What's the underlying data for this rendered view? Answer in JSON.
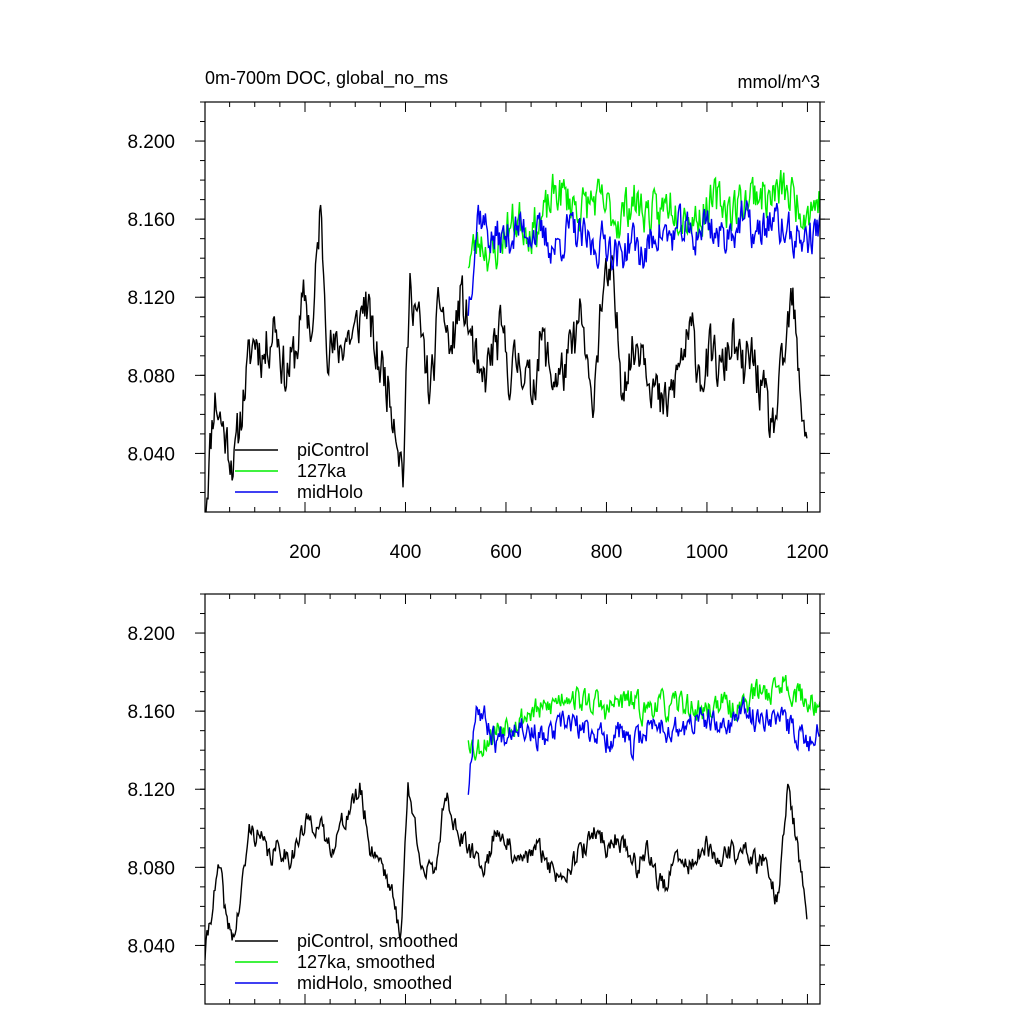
{
  "chart_data": [
    {
      "type": "line",
      "title": "0m-700m DOC, global_no_ms",
      "units": "mmol/m^3",
      "xlabel": "",
      "ylabel": "",
      "xlim": [
        1,
        1225
      ],
      "ylim": [
        8.01,
        8.22
      ],
      "xticks": [
        200,
        400,
        600,
        800,
        1000,
        1200
      ],
      "xtick_labels": [
        "200",
        "400",
        "600",
        "800",
        "1000",
        "1200"
      ],
      "yticks": [
        8.04,
        8.08,
        8.12,
        8.16,
        8.2
      ],
      "ytick_labels": [
        "8.040",
        "8.080",
        "8.120",
        "8.160",
        "8.200"
      ],
      "legend_position": "bottom-left",
      "series": [
        {
          "name": "piControl",
          "color": "#000000",
          "x_start": 1,
          "x_end": 1200,
          "anchors": [
            [
              1,
              8.012
            ],
            [
              20,
              8.07
            ],
            [
              40,
              8.05
            ],
            [
              60,
              8.035
            ],
            [
              80,
              8.075
            ],
            [
              100,
              8.1
            ],
            [
              120,
              8.09
            ],
            [
              140,
              8.11
            ],
            [
              160,
              8.08
            ],
            [
              180,
              8.09
            ],
            [
              200,
              8.12
            ],
            [
              215,
              8.1
            ],
            [
              230,
              8.165
            ],
            [
              245,
              8.1
            ],
            [
              260,
              8.09
            ],
            [
              280,
              8.1
            ],
            [
              300,
              8.1
            ],
            [
              320,
              8.12
            ],
            [
              340,
              8.09
            ],
            [
              360,
              8.08
            ],
            [
              380,
              8.06
            ],
            [
              395,
              8.03
            ],
            [
              410,
              8.13
            ],
            [
              430,
              8.1
            ],
            [
              450,
              8.07
            ],
            [
              470,
              8.12
            ],
            [
              490,
              8.09
            ],
            [
              510,
              8.12
            ],
            [
              530,
              8.1
            ],
            [
              550,
              8.07
            ],
            [
              570,
              8.09
            ],
            [
              590,
              8.1
            ],
            [
              610,
              8.08
            ],
            [
              630,
              8.09
            ],
            [
              650,
              8.07
            ],
            [
              670,
              8.1
            ],
            [
              690,
              8.08
            ],
            [
              710,
              8.08
            ],
            [
              730,
              8.09
            ],
            [
              750,
              8.11
            ],
            [
              770,
              8.06
            ],
            [
              790,
              8.12
            ],
            [
              810,
              8.13
            ],
            [
              830,
              8.08
            ],
            [
              850,
              8.09
            ],
            [
              870,
              8.1
            ],
            [
              890,
              8.08
            ],
            [
              910,
              8.06
            ],
            [
              930,
              8.07
            ],
            [
              950,
              8.09
            ],
            [
              970,
              8.1
            ],
            [
              990,
              8.08
            ],
            [
              1010,
              8.09
            ],
            [
              1030,
              8.08
            ],
            [
              1050,
              8.1
            ],
            [
              1070,
              8.08
            ],
            [
              1090,
              8.09
            ],
            [
              1110,
              8.07
            ],
            [
              1130,
              8.05
            ],
            [
              1150,
              8.08
            ],
            [
              1170,
              8.12
            ],
            [
              1185,
              8.07
            ],
            [
              1200,
              8.05
            ]
          ],
          "noise": 0.012,
          "seed": 11
        },
        {
          "name": "127ka",
          "color": "#00ee00",
          "x_start": 525,
          "x_end": 1225,
          "anchors": [
            [
              525,
              8.14
            ],
            [
              550,
              8.15
            ],
            [
              575,
              8.14
            ],
            [
              600,
              8.155
            ],
            [
              625,
              8.16
            ],
            [
              650,
              8.155
            ],
            [
              675,
              8.16
            ],
            [
              700,
              8.175
            ],
            [
              725,
              8.17
            ],
            [
              750,
              8.165
            ],
            [
              775,
              8.17
            ],
            [
              800,
              8.165
            ],
            [
              825,
              8.16
            ],
            [
              850,
              8.17
            ],
            [
              875,
              8.165
            ],
            [
              900,
              8.16
            ],
            [
              925,
              8.17
            ],
            [
              950,
              8.165
            ],
            [
              975,
              8.16
            ],
            [
              1000,
              8.165
            ],
            [
              1025,
              8.17
            ],
            [
              1050,
              8.165
            ],
            [
              1075,
              8.17
            ],
            [
              1100,
              8.175
            ],
            [
              1125,
              8.17
            ],
            [
              1150,
              8.175
            ],
            [
              1175,
              8.17
            ],
            [
              1200,
              8.165
            ],
            [
              1225,
              8.17
            ]
          ],
          "noise": 0.01,
          "seed": 23
        },
        {
          "name": "midHolo",
          "color": "#0000ee",
          "x_start": 525,
          "x_end": 1225,
          "anchors": [
            [
              525,
              8.115
            ],
            [
              545,
              8.165
            ],
            [
              570,
              8.15
            ],
            [
              600,
              8.15
            ],
            [
              625,
              8.155
            ],
            [
              650,
              8.155
            ],
            [
              675,
              8.15
            ],
            [
              700,
              8.145
            ],
            [
              725,
              8.155
            ],
            [
              750,
              8.15
            ],
            [
              775,
              8.145
            ],
            [
              800,
              8.15
            ],
            [
              825,
              8.14
            ],
            [
              850,
              8.15
            ],
            [
              875,
              8.14
            ],
            [
              900,
              8.155
            ],
            [
              925,
              8.15
            ],
            [
              950,
              8.155
            ],
            [
              975,
              8.15
            ],
            [
              1000,
              8.16
            ],
            [
              1025,
              8.15
            ],
            [
              1050,
              8.155
            ],
            [
              1075,
              8.16
            ],
            [
              1100,
              8.15
            ],
            [
              1125,
              8.16
            ],
            [
              1150,
              8.155
            ],
            [
              1175,
              8.15
            ],
            [
              1200,
              8.15
            ],
            [
              1225,
              8.155
            ]
          ],
          "noise": 0.009,
          "seed": 37
        }
      ]
    },
    {
      "type": "line",
      "title": "",
      "units": "",
      "xlabel": "",
      "ylabel": "",
      "xlim": [
        1,
        1225
      ],
      "ylim": [
        8.01,
        8.22
      ],
      "xticks": [
        200,
        400,
        600,
        800,
        1000,
        1200
      ],
      "xtick_labels": [],
      "yticks": [
        8.04,
        8.08,
        8.12,
        8.16,
        8.2
      ],
      "ytick_labels": [
        "8.040",
        "8.080",
        "8.120",
        "8.160",
        "8.200"
      ],
      "legend_position": "bottom-left",
      "series": [
        {
          "name": "piControl, smoothed",
          "color": "#000000",
          "x_start": 1,
          "x_end": 1200,
          "anchors": [
            [
              1,
              8.035
            ],
            [
              15,
              8.06
            ],
            [
              30,
              8.08
            ],
            [
              45,
              8.05
            ],
            [
              60,
              8.045
            ],
            [
              75,
              8.07
            ],
            [
              90,
              8.1
            ],
            [
              110,
              8.095
            ],
            [
              130,
              8.085
            ],
            [
              150,
              8.09
            ],
            [
              170,
              8.085
            ],
            [
              190,
              8.095
            ],
            [
              210,
              8.105
            ],
            [
              230,
              8.1
            ],
            [
              250,
              8.09
            ],
            [
              270,
              8.1
            ],
            [
              290,
              8.11
            ],
            [
              310,
              8.12
            ],
            [
              330,
              8.09
            ],
            [
              350,
              8.085
            ],
            [
              370,
              8.07
            ],
            [
              390,
              8.045
            ],
            [
              405,
              8.12
            ],
            [
              420,
              8.1
            ],
            [
              440,
              8.075
            ],
            [
              460,
              8.08
            ],
            [
              480,
              8.12
            ],
            [
              500,
              8.1
            ],
            [
              520,
              8.09
            ],
            [
              540,
              8.085
            ],
            [
              560,
              8.08
            ],
            [
              580,
              8.1
            ],
            [
              600,
              8.095
            ],
            [
              620,
              8.08
            ],
            [
              640,
              8.085
            ],
            [
              660,
              8.09
            ],
            [
              680,
              8.085
            ],
            [
              700,
              8.075
            ],
            [
              720,
              8.08
            ],
            [
              740,
              8.085
            ],
            [
              760,
              8.09
            ],
            [
              780,
              8.1
            ],
            [
              800,
              8.09
            ],
            [
              820,
              8.095
            ],
            [
              840,
              8.09
            ],
            [
              860,
              8.08
            ],
            [
              880,
              8.09
            ],
            [
              900,
              8.075
            ],
            [
              920,
              8.07
            ],
            [
              940,
              8.085
            ],
            [
              960,
              8.08
            ],
            [
              980,
              8.085
            ],
            [
              1000,
              8.09
            ],
            [
              1020,
              8.08
            ],
            [
              1040,
              8.09
            ],
            [
              1060,
              8.085
            ],
            [
              1080,
              8.09
            ],
            [
              1100,
              8.08
            ],
            [
              1120,
              8.085
            ],
            [
              1140,
              8.06
            ],
            [
              1160,
              8.12
            ],
            [
              1175,
              8.1
            ],
            [
              1190,
              8.07
            ],
            [
              1200,
              8.055
            ]
          ],
          "noise": 0.005,
          "seed": 41
        },
        {
          "name": "127ka, smoothed",
          "color": "#00ee00",
          "x_start": 525,
          "x_end": 1225,
          "anchors": [
            [
              525,
              8.148
            ],
            [
              540,
              8.14
            ],
            [
              560,
              8.145
            ],
            [
              580,
              8.15
            ],
            [
              600,
              8.155
            ],
            [
              625,
              8.155
            ],
            [
              650,
              8.16
            ],
            [
              675,
              8.16
            ],
            [
              700,
              8.165
            ],
            [
              725,
              8.17
            ],
            [
              750,
              8.165
            ],
            [
              775,
              8.165
            ],
            [
              800,
              8.16
            ],
            [
              825,
              8.165
            ],
            [
              850,
              8.165
            ],
            [
              875,
              8.16
            ],
            [
              900,
              8.165
            ],
            [
              925,
              8.16
            ],
            [
              950,
              8.165
            ],
            [
              975,
              8.16
            ],
            [
              1000,
              8.16
            ],
            [
              1025,
              8.165
            ],
            [
              1050,
              8.16
            ],
            [
              1075,
              8.165
            ],
            [
              1100,
              8.17
            ],
            [
              1125,
              8.17
            ],
            [
              1150,
              8.175
            ],
            [
              1175,
              8.17
            ],
            [
              1200,
              8.165
            ],
            [
              1225,
              8.165
            ]
          ],
          "noise": 0.006,
          "seed": 53
        },
        {
          "name": "midHolo, smoothed",
          "color": "#0000ee",
          "x_start": 525,
          "x_end": 1225,
          "anchors": [
            [
              525,
              8.12
            ],
            [
              540,
              8.165
            ],
            [
              560,
              8.155
            ],
            [
              580,
              8.145
            ],
            [
              600,
              8.15
            ],
            [
              625,
              8.155
            ],
            [
              650,
              8.15
            ],
            [
              675,
              8.145
            ],
            [
              700,
              8.15
            ],
            [
              725,
              8.155
            ],
            [
              750,
              8.15
            ],
            [
              775,
              8.15
            ],
            [
              800,
              8.145
            ],
            [
              825,
              8.15
            ],
            [
              850,
              8.14
            ],
            [
              875,
              8.15
            ],
            [
              900,
              8.155
            ],
            [
              925,
              8.15
            ],
            [
              950,
              8.15
            ],
            [
              975,
              8.155
            ],
            [
              1000,
              8.155
            ],
            [
              1025,
              8.15
            ],
            [
              1050,
              8.155
            ],
            [
              1075,
              8.16
            ],
            [
              1100,
              8.155
            ],
            [
              1125,
              8.16
            ],
            [
              1150,
              8.155
            ],
            [
              1175,
              8.15
            ],
            [
              1200,
              8.145
            ],
            [
              1225,
              8.15
            ]
          ],
          "noise": 0.006,
          "seed": 67
        }
      ]
    }
  ]
}
